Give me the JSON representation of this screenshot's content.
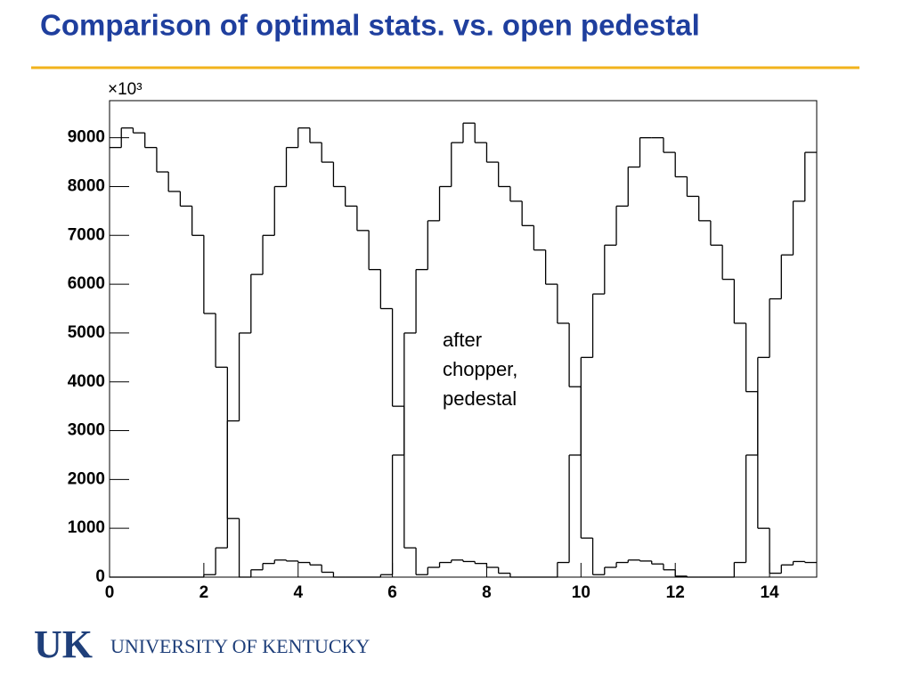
{
  "chart_data": {
    "type": "histogram",
    "title": "Comparison of optimal stats. vs. open pedestal",
    "y_multiplier": "×10³",
    "annotation": [
      "after",
      "chopper,",
      "pedestal"
    ],
    "footer": {
      "logo": "UK",
      "institution": "UNIVERSITY OF KENTUCKY"
    },
    "bins": [
      0,
      0.25,
      0.5,
      0.75,
      1,
      1.25,
      1.5,
      1.75,
      2,
      2.25,
      2.5,
      2.75,
      3,
      3.25,
      3.5,
      3.75,
      4,
      4.25,
      4.5,
      4.75,
      5,
      5.25,
      5.5,
      5.75,
      6,
      6.25,
      6.5,
      6.75,
      7,
      7.25,
      7.5,
      7.75,
      8,
      8.25,
      8.5,
      8.75,
      9,
      9.25,
      9.5,
      9.75,
      10,
      10.25,
      10.5,
      10.75,
      11,
      11.25,
      11.5,
      11.75,
      12,
      12.25,
      12.5,
      12.75,
      13,
      13.25,
      13.5,
      13.75,
      14,
      14.25,
      14.5,
      14.75,
      15
    ],
    "series": [
      {
        "color": "#000000",
        "values": [
          8800,
          9200,
          9100,
          8800,
          8300,
          7900,
          7600,
          7000,
          5400,
          4300,
          1200,
          0,
          150,
          280,
          350,
          330,
          300,
          250,
          100,
          0,
          0,
          0,
          0,
          50,
          2500,
          5000,
          6300,
          7300,
          8000,
          8900,
          9300,
          8900,
          8500,
          8000,
          7700,
          7200,
          6700,
          6000,
          5200,
          3900,
          800,
          50,
          200,
          300,
          350,
          330,
          270,
          150,
          20,
          0,
          0,
          0,
          0,
          300,
          2500,
          4500,
          5700,
          6600,
          7700,
          8700
        ]
      },
      {
        "color": "#000000",
        "values": [
          0,
          0,
          0,
          0,
          0,
          0,
          0,
          0,
          50,
          600,
          3200,
          5000,
          6200,
          7000,
          8000,
          8800,
          9200,
          8900,
          8500,
          8000,
          7600,
          7100,
          6300,
          5500,
          3500,
          600,
          50,
          200,
          300,
          350,
          320,
          280,
          200,
          80,
          0,
          0,
          0,
          0,
          300,
          2500,
          4500,
          5800,
          6800,
          7600,
          8400,
          9000,
          9000,
          8700,
          8200,
          7800,
          7300,
          6800,
          6100,
          5200,
          3800,
          1000,
          80,
          250,
          320,
          300
        ]
      }
    ],
    "xlim": [
      0,
      15
    ],
    "xticks": [
      0,
      2,
      4,
      6,
      8,
      10,
      12,
      14
    ],
    "ylim": [
      0,
      9760
    ],
    "yticks": [
      0,
      1000,
      2000,
      3000,
      4000,
      5000,
      6000,
      7000,
      8000,
      9000
    ],
    "title_color": "#1f3f9e",
    "rule_color": "#f2b31c",
    "logo_color": "#1f3f7a"
  }
}
